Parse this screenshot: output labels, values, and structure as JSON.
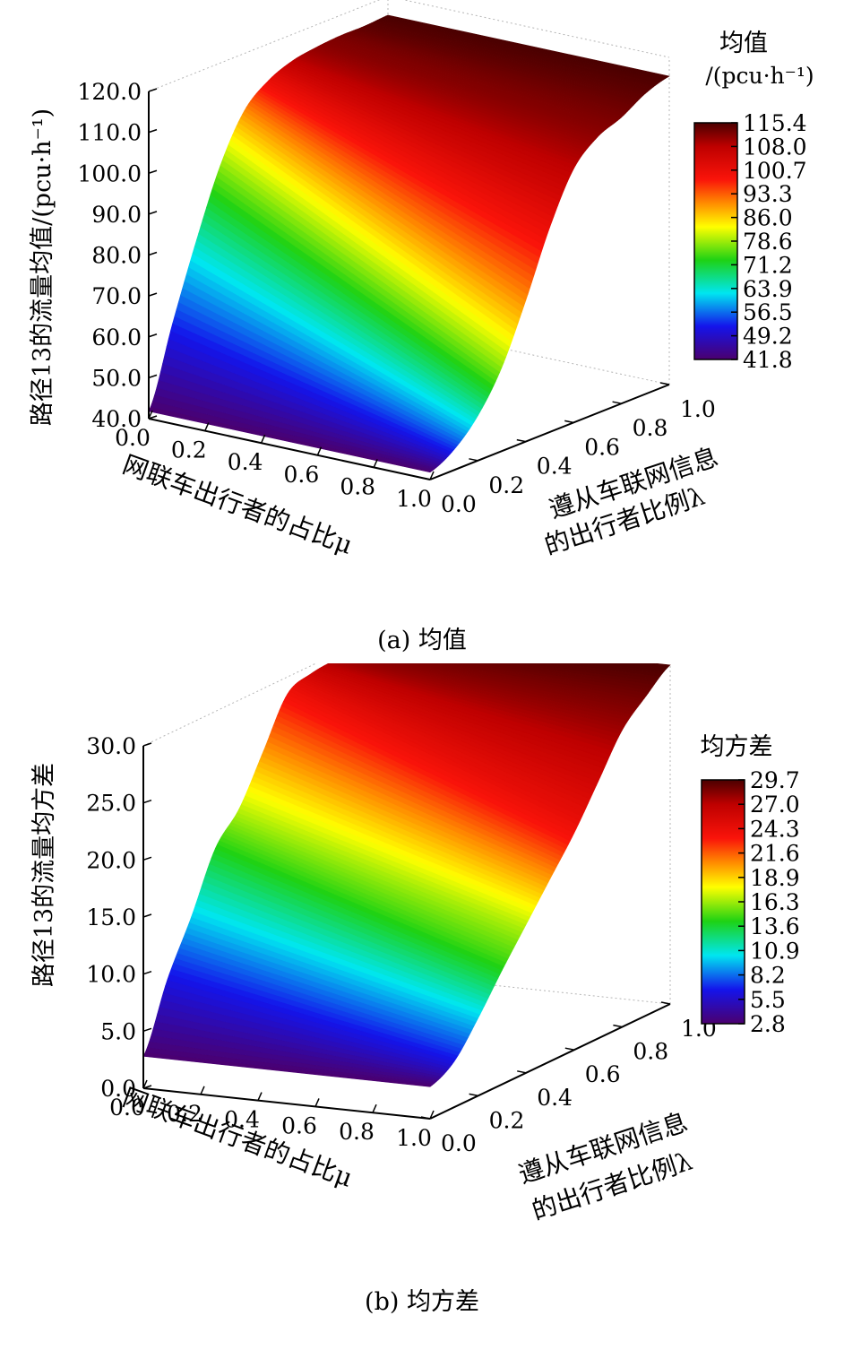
{
  "chart_data": [
    {
      "type": "surface",
      "caption": "(a) 均值",
      "zlabel": "路径13的流量均值/(pcu·h⁻¹)",
      "xlabel": "网联车出行者的占比μ",
      "ylabel_line1": "遵从车联网信息",
      "ylabel_line2": "的出行者比例λ",
      "z_ticks": [
        "40.0",
        "50.0",
        "60.0",
        "70.0",
        "80.0",
        "90.0",
        "100.0",
        "110.0",
        "120.0"
      ],
      "zlim": [
        40,
        120
      ],
      "x_ticks": [
        "0.0",
        "0.2",
        "0.4",
        "0.6",
        "0.8",
        "1.0"
      ],
      "y_ticks": [
        "0.0",
        "0.2",
        "0.4",
        "0.6",
        "0.8",
        "1.0"
      ],
      "colorbar_title_line1": "均值",
      "colorbar_title_line2": "/(pcu·h⁻¹)",
      "colorbar_ticks": [
        "115.4",
        "108.0",
        "100.7",
        "93.3",
        "86.0",
        "78.6",
        "71.2",
        "63.9",
        "56.5",
        "49.2",
        "41.8"
      ],
      "clim": [
        41.8,
        115.4
      ],
      "lambda": [
        0.0,
        0.1,
        0.2,
        0.3,
        0.4,
        0.5,
        0.6,
        0.7,
        0.8,
        0.9,
        1.0
      ],
      "mu": [
        0.0,
        1.0
      ],
      "z_at_mu0": [
        41.8,
        61.0,
        79.0,
        95.0,
        106.0,
        111.0,
        113.5,
        114.5,
        115.0,
        115.0,
        115.4
      ],
      "z_at_mu1": [
        41.8,
        45.0,
        51.0,
        60.5,
        74.5,
        90.0,
        102.0,
        107.5,
        110.0,
        113.5,
        115.4
      ]
    },
    {
      "type": "surface",
      "caption": "(b) 均方差",
      "zlabel": "路径13的流量均方差",
      "xlabel": "网联车出行者的占比μ",
      "ylabel_line1": "遵从车联网信息",
      "ylabel_line2": "的出行者比例λ",
      "z_ticks": [
        "0.0",
        "5.0",
        "10.0",
        "15.0",
        "20.0",
        "25.0",
        "30.0"
      ],
      "zlim": [
        0,
        30
      ],
      "x_ticks": [
        "0.0",
        "0.2",
        "0.4",
        "0.6",
        "0.8",
        "1.0"
      ],
      "y_ticks": [
        "0.0",
        "0.2",
        "0.4",
        "0.6",
        "0.8",
        "1.0"
      ],
      "colorbar_title_line1": "均方差",
      "colorbar_title_line2": "",
      "colorbar_ticks": [
        "29.7",
        "27.0",
        "24.3",
        "21.6",
        "18.9",
        "16.3",
        "13.6",
        "10.9",
        "8.2",
        "5.5",
        "2.8"
      ],
      "clim": [
        2.8,
        29.7
      ],
      "lambda": [
        0.0,
        0.1,
        0.2,
        0.3,
        0.4,
        0.5,
        0.6,
        0.7,
        0.8,
        0.9,
        1.0
      ],
      "mu": [
        0.0,
        1.0
      ],
      "z_at_mu0": [
        2.8,
        8.5,
        13.0,
        18.0,
        20.5,
        24.5,
        28.5,
        29.3,
        29.5,
        29.6,
        29.7
      ],
      "z_at_mu1": [
        2.8,
        4.0,
        6.8,
        10.0,
        13.0,
        16.0,
        19.0,
        22.5,
        26.0,
        28.0,
        29.7
      ]
    }
  ]
}
